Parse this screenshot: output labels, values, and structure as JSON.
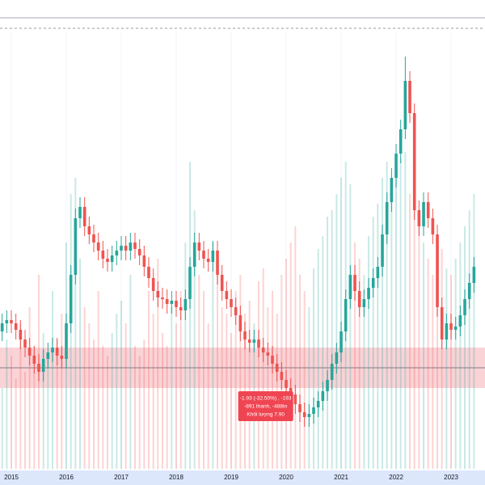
{
  "chart_data": {
    "type": "candlestick",
    "categories": [
      null,
      null,
      null,
      "2015",
      null,
      null,
      null,
      null,
      null,
      null,
      null,
      null,
      null,
      null,
      null,
      "2016",
      null,
      null,
      null,
      null,
      null,
      null,
      null,
      null,
      null,
      null,
      null,
      "2017",
      null,
      null,
      null,
      null,
      null,
      null,
      null,
      null,
      null,
      null,
      null,
      "2018",
      null,
      null,
      null,
      null,
      null,
      null,
      null,
      null,
      null,
      null,
      null,
      "2019",
      null,
      null,
      null,
      null,
      null,
      null,
      null,
      null,
      null,
      null,
      null,
      "2020",
      null,
      null,
      null,
      null,
      null,
      null,
      null,
      null,
      null,
      null,
      null,
      "2021",
      null,
      null,
      null,
      null,
      null,
      null,
      null,
      null,
      null,
      null,
      null,
      "2022",
      null,
      null,
      null,
      null,
      null,
      null,
      null,
      null,
      null,
      null,
      null,
      "2023",
      null,
      null,
      null,
      null,
      null
    ],
    "open": [
      8.2,
      8.5,
      9,
      9.2,
      9,
      8.6,
      8,
      7.5,
      7,
      6.5,
      6,
      6.8,
      7.2,
      7.5,
      7,
      6.8,
      9,
      12,
      15.5,
      16.2,
      15,
      14.5,
      14,
      13.5,
      13,
      12.8,
      13.2,
      13.5,
      13.8,
      13.5,
      14,
      13.6,
      13.2,
      12.5,
      11.8,
      11,
      10.6,
      10.5,
      10.2,
      10.4,
      10,
      9.8,
      10.5,
      12.5,
      14,
      13.5,
      13,
      12.8,
      13.5,
      12,
      11,
      10.5,
      10,
      9.5,
      8.5,
      8,
      7.8,
      8,
      7.5,
      7.2,
      7,
      6.5,
      6,
      5.5,
      5,
      4.6,
      4,
      3.5,
      3.2,
      3.4,
      3.8,
      4.2,
      4.8,
      5.5,
      6.5,
      7.2,
      8.5,
      10.5,
      12,
      11,
      10,
      10.5,
      11.2,
      11.8,
      12.5,
      14.5,
      16.5,
      18,
      19.5,
      21,
      24,
      22,
      16,
      15,
      16.5,
      15.5,
      14.5,
      10,
      8,
      9,
      8.6,
      8.8,
      9.5,
      10.5,
      11.5
    ],
    "high": [
      9.1,
      9.6,
      9.8,
      9.8,
      9.6,
      9.2,
      8.6,
      8.1,
      7.6,
      7.1,
      7.4,
      7.8,
      8.1,
      8.1,
      7.6,
      9.6,
      12.6,
      16.1,
      16.8,
      16.8,
      15.6,
      15.1,
      14.6,
      14.1,
      13.6,
      13.8,
      14.1,
      14.4,
      14.4,
      14.6,
      14.6,
      14.2,
      13.8,
      13.1,
      12.4,
      11.6,
      11.2,
      11.1,
      11,
      11,
      10.6,
      11.1,
      13.1,
      14.6,
      14.6,
      14.1,
      13.6,
      14.1,
      14.1,
      12.6,
      11.6,
      11.1,
      10.6,
      10.1,
      9.1,
      8.6,
      8.6,
      8.6,
      8.1,
      7.8,
      7.6,
      7.1,
      6.6,
      6.1,
      5.6,
      5.2,
      4.6,
      4.1,
      4,
      4.4,
      4.8,
      5.4,
      6.1,
      7.1,
      7.8,
      9.1,
      11.1,
      12.6,
      12.6,
      11.6,
      11.1,
      11.8,
      12.4,
      13.1,
      15.1,
      17.1,
      18.6,
      20.1,
      21.6,
      25.5,
      24.6,
      22.6,
      16.6,
      17.1,
      17.1,
      16.1,
      15.1,
      10.6,
      9.6,
      9.6,
      9.4,
      10.1,
      11.1,
      12.1,
      13.1
    ],
    "low": [
      7.6,
      7.9,
      8.4,
      8.4,
      8,
      7.4,
      6.9,
      6.4,
      5.9,
      5.4,
      5.4,
      6.2,
      6.6,
      6.4,
      6.2,
      6.2,
      8.4,
      11.4,
      14.9,
      14.4,
      13.9,
      13.4,
      12.9,
      12.4,
      12.2,
      12.2,
      12.6,
      12.9,
      12.9,
      12.9,
      13,
      12.6,
      11.9,
      11.2,
      10.4,
      10,
      9.9,
      9.6,
      9.6,
      9.4,
      9.2,
      9.2,
      9.9,
      11.9,
      12.9,
      12.4,
      12.2,
      12.2,
      11.4,
      10.4,
      9.9,
      9.4,
      8.9,
      7.9,
      7.4,
      7.2,
      7.2,
      6.9,
      6.6,
      6.4,
      5.9,
      5.4,
      4.9,
      4.4,
      4,
      3.4,
      2.9,
      2.6,
      2.6,
      2.8,
      3.2,
      3.6,
      4.2,
      4.9,
      5.9,
      6.6,
      7.9,
      9.9,
      10.4,
      9.4,
      9.4,
      9.9,
      10.6,
      11.2,
      11.9,
      13.9,
      15.9,
      17.4,
      18.9,
      20.4,
      21.4,
      15.4,
      14.4,
      14.4,
      14.9,
      13.9,
      9.4,
      7.4,
      7.4,
      8,
      8,
      8.2,
      8.9,
      9.9,
      10.9
    ],
    "close": [
      8.5,
      9,
      9.2,
      9,
      8.6,
      8,
      7.5,
      7,
      6.5,
      6,
      6.8,
      7.2,
      7.5,
      7,
      6.8,
      9,
      12,
      15.5,
      16.2,
      15,
      14.5,
      14,
      13.5,
      13,
      12.8,
      13.2,
      13.5,
      13.8,
      13.5,
      14,
      13.6,
      13.2,
      12.5,
      11.8,
      11,
      10.6,
      10.5,
      10.2,
      10.4,
      10,
      9.8,
      10.5,
      12.5,
      14,
      13.5,
      13,
      12.8,
      13.5,
      12,
      11,
      10.5,
      10,
      9.5,
      8.5,
      8,
      7.8,
      8,
      7.5,
      7.2,
      7,
      6.5,
      6,
      5.5,
      5,
      4.6,
      4,
      3.5,
      3.2,
      3.4,
      3.8,
      4.2,
      4.8,
      5.5,
      6.5,
      7.2,
      8.5,
      10.5,
      12,
      11,
      10,
      10.5,
      11.2,
      11.8,
      12.5,
      14.5,
      16.5,
      18,
      19.5,
      21,
      24,
      22,
      16,
      15,
      16.5,
      15.5,
      14.5,
      10,
      8,
      9,
      8.6,
      8.8,
      9.5,
      10.5,
      11.5,
      12.5
    ],
    "volume": [
      30,
      25,
      40,
      35,
      28,
      45,
      30,
      50,
      38,
      60,
      42,
      35,
      55,
      40,
      48,
      70,
      85,
      90,
      65,
      50,
      45,
      40,
      55,
      38,
      35,
      42,
      48,
      52,
      45,
      60,
      38,
      35,
      40,
      55,
      48,
      65,
      42,
      38,
      50,
      45,
      55,
      70,
      95,
      80,
      60,
      55,
      45,
      70,
      62,
      50,
      48,
      42,
      55,
      60,
      48,
      52,
      45,
      58,
      62,
      50,
      55,
      48,
      60,
      65,
      70,
      75,
      60,
      55,
      50,
      62,
      68,
      72,
      78,
      80,
      85,
      90,
      95,
      88,
      70,
      65,
      60,
      72,
      78,
      82,
      90,
      95,
      88,
      92,
      96,
      98,
      85,
      90,
      75,
      70,
      65,
      60,
      72,
      68,
      62,
      60,
      65,
      70,
      75,
      80,
      85
    ],
    "ylim": [
      0,
      29
    ],
    "vlim": [
      0,
      100
    ],
    "up_color": "#26a69a",
    "down_color": "#ef5350",
    "zone": [
      5,
      7.5
    ],
    "zone_color": "#f7b6bd",
    "level": 6.25,
    "annotation": {
      "lines": [
        "-1.93 (-32.50%) , -193",
        "-891 thanh, -488tn",
        "Khối lượng 7.90"
      ],
      "at": 58,
      "color": "#ef4552"
    }
  }
}
